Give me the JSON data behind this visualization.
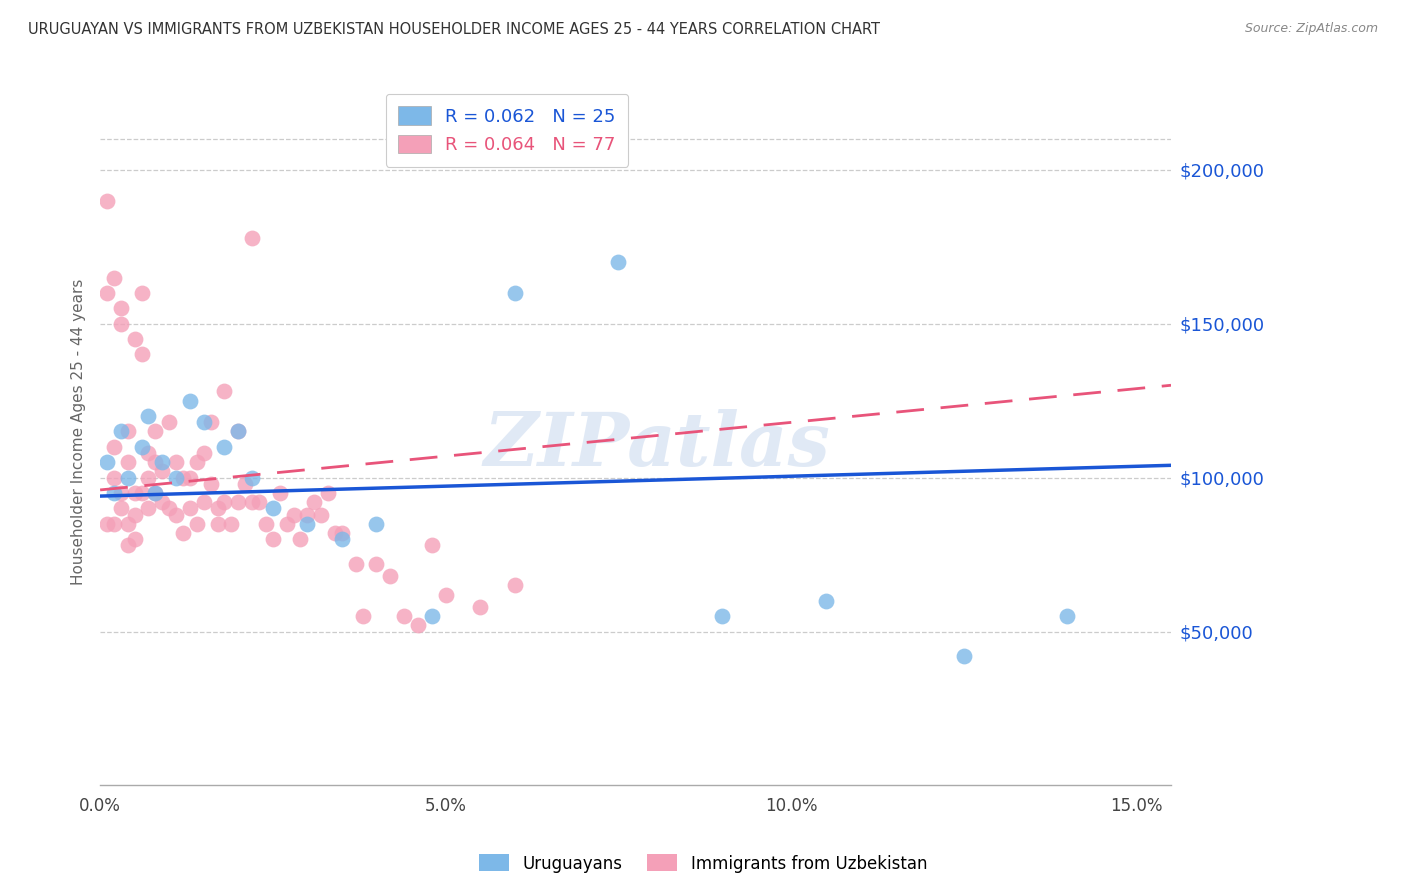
{
  "title": "URUGUAYAN VS IMMIGRANTS FROM UZBEKISTAN HOUSEHOLDER INCOME AGES 25 - 44 YEARS CORRELATION CHART",
  "source": "Source: ZipAtlas.com",
  "ylabel": "Householder Income Ages 25 - 44 years",
  "xlabel_ticks": [
    "0.0%",
    "5.0%",
    "10.0%",
    "15.0%"
  ],
  "xlabel_tick_vals": [
    0.0,
    0.05,
    0.1,
    0.15
  ],
  "ylabel_ticks_right": [
    "$50,000",
    "$100,000",
    "$150,000",
    "$200,000"
  ],
  "ylabel_tick_vals": [
    50000,
    100000,
    150000,
    200000
  ],
  "ylim": [
    0,
    230000
  ],
  "xlim": [
    0.0,
    0.155
  ],
  "blue_R": "0.062",
  "blue_N": "25",
  "pink_R": "0.064",
  "pink_N": "77",
  "blue_color": "#7db8e8",
  "pink_color": "#f4a0b8",
  "blue_line_color": "#1a56d6",
  "pink_line_color": "#e8547a",
  "legend_label_blue": "Uruguayans",
  "legend_label_pink": "Immigrants from Uzbekistan",
  "watermark": "ZIPatlas",
  "blue_line_x0": 0.0,
  "blue_line_x1": 0.155,
  "blue_line_y0": 94000,
  "blue_line_y1": 104000,
  "pink_line_x0": 0.0,
  "pink_line_x1": 0.155,
  "pink_line_y0": 96000,
  "pink_line_y1": 130000,
  "blue_points_x": [
    0.001,
    0.002,
    0.003,
    0.004,
    0.006,
    0.007,
    0.008,
    0.009,
    0.011,
    0.013,
    0.015,
    0.018,
    0.02,
    0.022,
    0.025,
    0.03,
    0.035,
    0.04,
    0.048,
    0.06,
    0.075,
    0.09,
    0.105,
    0.125,
    0.14
  ],
  "blue_points_y": [
    105000,
    95000,
    115000,
    100000,
    110000,
    120000,
    95000,
    105000,
    100000,
    125000,
    118000,
    110000,
    115000,
    100000,
    90000,
    85000,
    80000,
    85000,
    55000,
    160000,
    170000,
    55000,
    60000,
    42000,
    55000
  ],
  "pink_points_x": [
    0.001,
    0.001,
    0.001,
    0.002,
    0.002,
    0.002,
    0.002,
    0.003,
    0.003,
    0.003,
    0.003,
    0.004,
    0.004,
    0.004,
    0.004,
    0.005,
    0.005,
    0.005,
    0.005,
    0.006,
    0.006,
    0.006,
    0.007,
    0.007,
    0.007,
    0.008,
    0.008,
    0.008,
    0.009,
    0.009,
    0.01,
    0.01,
    0.011,
    0.011,
    0.012,
    0.012,
    0.013,
    0.013,
    0.014,
    0.014,
    0.015,
    0.015,
    0.016,
    0.016,
    0.017,
    0.017,
    0.018,
    0.018,
    0.019,
    0.02,
    0.02,
    0.021,
    0.022,
    0.022,
    0.023,
    0.024,
    0.025,
    0.026,
    0.027,
    0.028,
    0.029,
    0.03,
    0.031,
    0.032,
    0.033,
    0.034,
    0.035,
    0.037,
    0.038,
    0.04,
    0.042,
    0.044,
    0.046,
    0.048,
    0.05,
    0.055,
    0.06
  ],
  "pink_points_y": [
    190000,
    85000,
    160000,
    165000,
    100000,
    110000,
    85000,
    90000,
    95000,
    150000,
    155000,
    105000,
    115000,
    85000,
    78000,
    95000,
    88000,
    80000,
    145000,
    160000,
    140000,
    95000,
    108000,
    100000,
    90000,
    115000,
    95000,
    105000,
    102000,
    92000,
    118000,
    90000,
    105000,
    88000,
    100000,
    82000,
    100000,
    90000,
    105000,
    85000,
    108000,
    92000,
    118000,
    98000,
    90000,
    85000,
    128000,
    92000,
    85000,
    115000,
    92000,
    98000,
    92000,
    178000,
    92000,
    85000,
    80000,
    95000,
    85000,
    88000,
    80000,
    88000,
    92000,
    88000,
    95000,
    82000,
    82000,
    72000,
    55000,
    72000,
    68000,
    55000,
    52000,
    78000,
    62000,
    58000,
    65000
  ]
}
